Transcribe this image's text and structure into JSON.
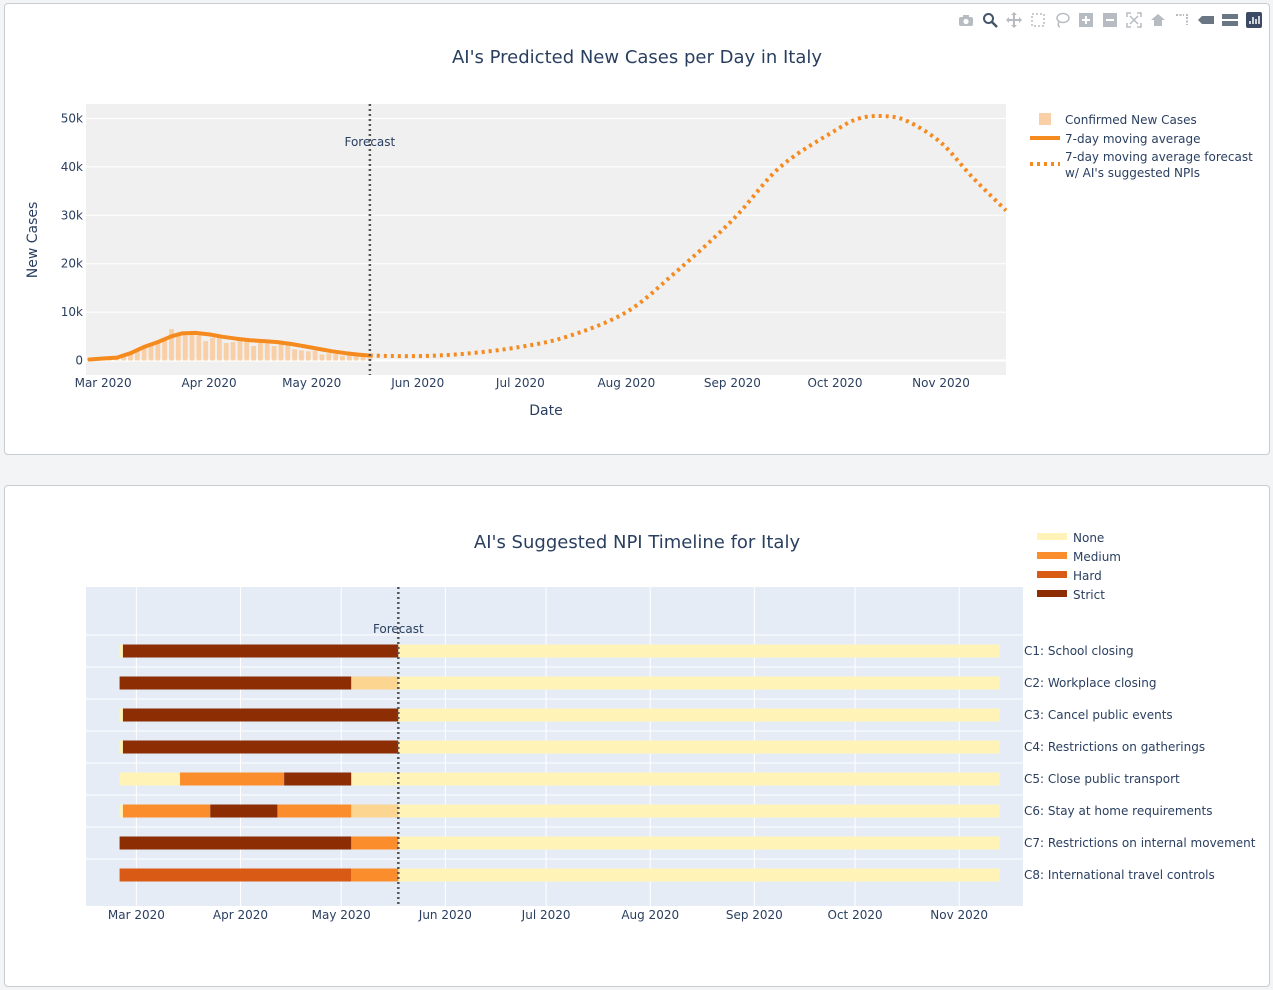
{
  "colors": {
    "orange": "#f58a1f",
    "bar": "#f8cfa6",
    "plot_bg1": "#f0f0f0",
    "plot_bg2": "#e5ecf6",
    "none": "#fff3b8",
    "light": "#fcd590",
    "medium": "#fb8d2c",
    "hard": "#d95a15",
    "strict": "#8c2d04"
  },
  "modebar": [
    "camera-icon",
    "zoom-icon",
    "pan-icon",
    "box-select-icon",
    "lasso-icon",
    "zoom-in-icon",
    "zoom-out-icon",
    "autoscale-icon",
    "reset-axes-icon",
    "spike-lines-icon",
    "hover-closest-icon",
    "hover-compare-icon",
    "plotly-logo-icon"
  ],
  "chart_data": [
    {
      "type": "line",
      "title": "AI's Predicted New Cases per Day in Italy",
      "xlabel": "Date",
      "ylabel": "New Cases",
      "x_range": [
        "2020-02-25",
        "2020-11-20"
      ],
      "ylim": [
        -3000,
        53000
      ],
      "yticks": [
        0,
        10000,
        20000,
        30000,
        40000,
        50000
      ],
      "ytick_labels": [
        "0",
        "10k",
        "20k",
        "30k",
        "40k",
        "50k"
      ],
      "xticks": [
        "2020-03-01",
        "2020-04-01",
        "2020-05-01",
        "2020-06-01",
        "2020-07-01",
        "2020-08-01",
        "2020-09-01",
        "2020-10-01",
        "2020-11-01"
      ],
      "xtick_labels": [
        "Mar 2020",
        "Apr 2020",
        "May 2020",
        "Jun 2020",
        "Jul 2020",
        "Aug 2020",
        "Sep 2020",
        "Oct 2020",
        "Nov 2020"
      ],
      "forecast_date": "2020-05-18",
      "forecast_label": "Forecast",
      "legend": [
        "Confirmed New Cases",
        "7-day moving average",
        "7-day moving average forecast",
        "w/ AI's suggested NPIs"
      ],
      "series": [
        {
          "name": "Confirmed New Cases",
          "type": "bar",
          "x": [
            "2020-03-01",
            "2020-03-03",
            "2020-03-05",
            "2020-03-07",
            "2020-03-09",
            "2020-03-11",
            "2020-03-13",
            "2020-03-15",
            "2020-03-17",
            "2020-03-19",
            "2020-03-21",
            "2020-03-23",
            "2020-03-25",
            "2020-03-27",
            "2020-03-29",
            "2020-03-31",
            "2020-04-02",
            "2020-04-04",
            "2020-04-06",
            "2020-04-08",
            "2020-04-10",
            "2020-04-12",
            "2020-04-14",
            "2020-04-16",
            "2020-04-18",
            "2020-04-20",
            "2020-04-22",
            "2020-04-24",
            "2020-04-26",
            "2020-04-28",
            "2020-04-30",
            "2020-05-02",
            "2020-05-04",
            "2020-05-06",
            "2020-05-08",
            "2020-05-10",
            "2020-05-12",
            "2020-05-14",
            "2020-05-16",
            "2020-05-18"
          ],
          "values": [
            500,
            450,
            800,
            1200,
            1500,
            2300,
            2600,
            3400,
            3500,
            4200,
            6500,
            5500,
            5200,
            6100,
            5200,
            4000,
            4700,
            4800,
            3600,
            3800,
            4200,
            4600,
            3000,
            3800,
            3500,
            3000,
            3400,
            3200,
            2300,
            2100,
            1900,
            2000,
            1250,
            1450,
            1300,
            1000,
            1400,
            950,
            870,
            450
          ]
        },
        {
          "name": "7-day moving average",
          "type": "line",
          "x": [
            "2020-02-26",
            "2020-03-01",
            "2020-03-05",
            "2020-03-09",
            "2020-03-13",
            "2020-03-17",
            "2020-03-21",
            "2020-03-24",
            "2020-03-28",
            "2020-04-01",
            "2020-04-05",
            "2020-04-09",
            "2020-04-13",
            "2020-04-17",
            "2020-04-21",
            "2020-04-25",
            "2020-04-29",
            "2020-05-03",
            "2020-05-07",
            "2020-05-11",
            "2020-05-15",
            "2020-05-18"
          ],
          "values": [
            200,
            400,
            600,
            1500,
            2800,
            3800,
            5000,
            5600,
            5700,
            5400,
            4900,
            4500,
            4200,
            4000,
            3800,
            3400,
            2900,
            2400,
            1900,
            1500,
            1200,
            1000
          ]
        },
        {
          "name": "7-day moving average forecast w/ AI's suggested NPIs",
          "type": "line",
          "dash": "dot",
          "x": [
            "2020-05-18",
            "2020-06-01",
            "2020-06-15",
            "2020-07-01",
            "2020-07-15",
            "2020-08-01",
            "2020-08-15",
            "2020-09-01",
            "2020-09-15",
            "2020-10-01",
            "2020-10-08",
            "2020-10-15",
            "2020-10-22",
            "2020-11-01",
            "2020-11-10",
            "2020-11-20"
          ],
          "values": [
            1000,
            900,
            1400,
            2800,
            5000,
            10000,
            18000,
            29000,
            40000,
            47500,
            50000,
            50500,
            49500,
            45000,
            38000,
            31000
          ]
        }
      ]
    },
    {
      "type": "bar",
      "orientation": "h",
      "stacked": true,
      "title": "AI's Suggested NPI Timeline for Italy",
      "x_range": [
        "2020-02-15",
        "2020-11-20"
      ],
      "xticks": [
        "2020-03-01",
        "2020-04-01",
        "2020-05-01",
        "2020-06-01",
        "2020-07-01",
        "2020-08-01",
        "2020-09-01",
        "2020-10-01",
        "2020-11-01"
      ],
      "xtick_labels": [
        "Mar 2020",
        "Apr 2020",
        "May 2020",
        "Jun 2020",
        "Jul 2020",
        "Aug 2020",
        "Sep 2020",
        "Oct 2020",
        "Nov 2020"
      ],
      "forecast_date": "2020-05-18",
      "forecast_label": "Forecast",
      "legend": [
        "None",
        "Medium",
        "Hard",
        "Strict"
      ],
      "categories": [
        "C1: School closing",
        "C2: Workplace closing",
        "C3: Cancel public events",
        "C4: Restrictions on gatherings",
        "C5: Close public transport",
        "C6: Stay at home requirements",
        "C7: Restrictions on internal movement",
        "C8: International travel controls"
      ],
      "rows": [
        [
          [
            "2020-02-25",
            "2020-02-26",
            "none"
          ],
          [
            "2020-02-26",
            "2020-05-18",
            "strict"
          ],
          [
            "2020-05-18",
            "2020-11-13",
            "none"
          ]
        ],
        [
          [
            "2020-02-25",
            "2020-05-04",
            "strict"
          ],
          [
            "2020-05-04",
            "2020-05-18",
            "light"
          ],
          [
            "2020-05-18",
            "2020-11-13",
            "none"
          ]
        ],
        [
          [
            "2020-02-25",
            "2020-02-26",
            "none"
          ],
          [
            "2020-02-26",
            "2020-05-18",
            "strict"
          ],
          [
            "2020-05-18",
            "2020-11-13",
            "none"
          ]
        ],
        [
          [
            "2020-02-25",
            "2020-02-26",
            "none"
          ],
          [
            "2020-02-26",
            "2020-05-18",
            "strict"
          ],
          [
            "2020-05-18",
            "2020-11-13",
            "none"
          ]
        ],
        [
          [
            "2020-02-25",
            "2020-03-14",
            "none"
          ],
          [
            "2020-03-14",
            "2020-04-14",
            "medium"
          ],
          [
            "2020-04-14",
            "2020-05-04",
            "strict"
          ],
          [
            "2020-05-04",
            "2020-11-13",
            "none"
          ]
        ],
        [
          [
            "2020-02-25",
            "2020-02-26",
            "none"
          ],
          [
            "2020-02-26",
            "2020-03-23",
            "medium"
          ],
          [
            "2020-03-23",
            "2020-04-12",
            "strict"
          ],
          [
            "2020-04-12",
            "2020-05-04",
            "medium"
          ],
          [
            "2020-05-04",
            "2020-05-18",
            "light"
          ],
          [
            "2020-05-18",
            "2020-11-13",
            "none"
          ]
        ],
        [
          [
            "2020-02-25",
            "2020-05-04",
            "strict"
          ],
          [
            "2020-05-04",
            "2020-05-18",
            "medium"
          ],
          [
            "2020-05-18",
            "2020-11-13",
            "none"
          ]
        ],
        [
          [
            "2020-02-25",
            "2020-05-04",
            "hard"
          ],
          [
            "2020-05-04",
            "2020-05-18",
            "medium"
          ],
          [
            "2020-05-18",
            "2020-11-13",
            "none"
          ]
        ]
      ]
    }
  ]
}
